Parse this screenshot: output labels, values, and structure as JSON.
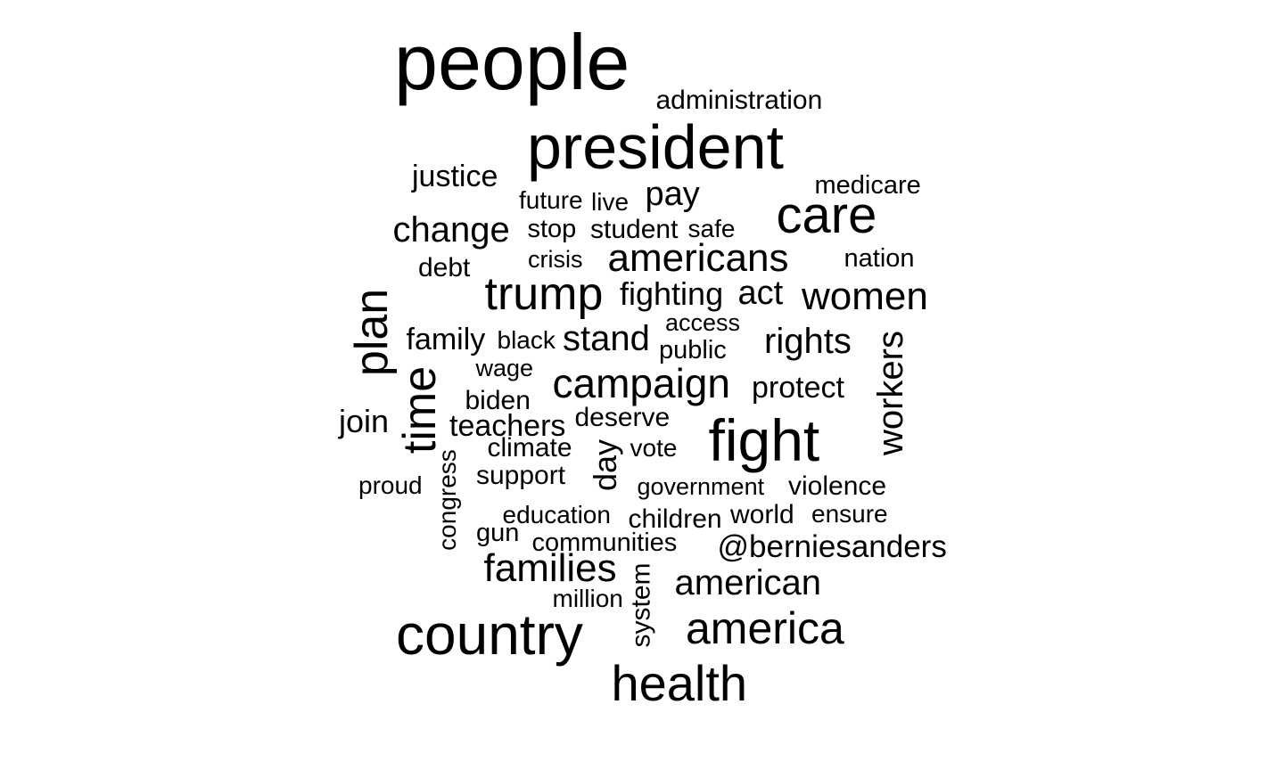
{
  "words": [
    {
      "id": "people",
      "text": "people"
    },
    {
      "id": "administration",
      "text": "administration"
    },
    {
      "id": "president",
      "text": "president"
    },
    {
      "id": "justice",
      "text": "justice"
    },
    {
      "id": "medicare",
      "text": "medicare"
    },
    {
      "id": "future",
      "text": "future"
    },
    {
      "id": "live",
      "text": "live"
    },
    {
      "id": "pay",
      "text": "pay"
    },
    {
      "id": "care",
      "text": "care"
    },
    {
      "id": "change",
      "text": "change"
    },
    {
      "id": "stop",
      "text": "stop"
    },
    {
      "id": "student",
      "text": "student"
    },
    {
      "id": "safe",
      "text": "safe"
    },
    {
      "id": "debt",
      "text": "debt"
    },
    {
      "id": "crisis",
      "text": "crisis"
    },
    {
      "id": "americans",
      "text": "americans"
    },
    {
      "id": "nation",
      "text": "nation"
    },
    {
      "id": "trump",
      "text": "trump"
    },
    {
      "id": "fighting",
      "text": "fighting"
    },
    {
      "id": "act",
      "text": "act"
    },
    {
      "id": "women",
      "text": "women"
    },
    {
      "id": "plan",
      "text": "plan"
    },
    {
      "id": "access",
      "text": "access"
    },
    {
      "id": "family",
      "text": "family"
    },
    {
      "id": "black",
      "text": "black"
    },
    {
      "id": "stand",
      "text": "stand"
    },
    {
      "id": "public",
      "text": "public"
    },
    {
      "id": "rights",
      "text": "rights"
    },
    {
      "id": "workers",
      "text": "workers"
    },
    {
      "id": "wage",
      "text": "wage"
    },
    {
      "id": "time",
      "text": "time"
    },
    {
      "id": "campaign",
      "text": "campaign"
    },
    {
      "id": "protect",
      "text": "protect"
    },
    {
      "id": "biden",
      "text": "biden"
    },
    {
      "id": "join",
      "text": "join"
    },
    {
      "id": "teachers",
      "text": "teachers"
    },
    {
      "id": "deserve",
      "text": "deserve"
    },
    {
      "id": "fight",
      "text": "fight"
    },
    {
      "id": "climate",
      "text": "climate"
    },
    {
      "id": "vote",
      "text": "vote"
    },
    {
      "id": "day",
      "text": "day"
    },
    {
      "id": "congress",
      "text": "congress"
    },
    {
      "id": "support",
      "text": "support"
    },
    {
      "id": "proud",
      "text": "proud"
    },
    {
      "id": "government",
      "text": "government"
    },
    {
      "id": "violence",
      "text": "violence"
    },
    {
      "id": "education",
      "text": "education"
    },
    {
      "id": "children",
      "text": "children"
    },
    {
      "id": "world",
      "text": "world"
    },
    {
      "id": "ensure",
      "text": "ensure"
    },
    {
      "id": "gun",
      "text": "gun"
    },
    {
      "id": "communities",
      "text": "communities"
    },
    {
      "id": "berniesanders",
      "text": "@berniesanders"
    },
    {
      "id": "families",
      "text": "families"
    },
    {
      "id": "system",
      "text": "system"
    },
    {
      "id": "american",
      "text": "american"
    },
    {
      "id": "million",
      "text": "million"
    },
    {
      "id": "country",
      "text": "country"
    },
    {
      "id": "america",
      "text": "america"
    },
    {
      "id": "health",
      "text": "health"
    }
  ]
}
